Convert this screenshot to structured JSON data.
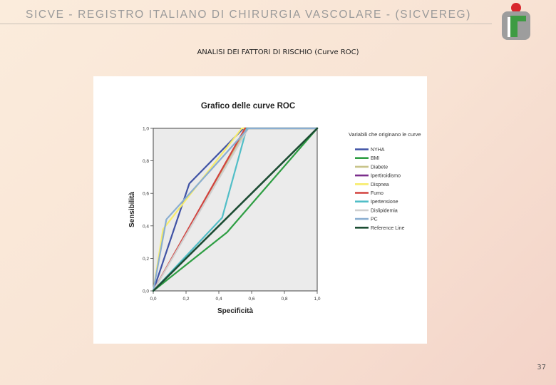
{
  "header": {
    "banner_text": "SICVE - REGISTRO ITALIANO DI CHIRURGIA VASCOLARE -  (SICVEREG)",
    "logo_letter": "r"
  },
  "slide": {
    "title": "ANALISI DEI FATTORI DI RISCHIO (Curve ROC)",
    "page_number": "37"
  },
  "colors": {
    "plot_background": "#ebebeb",
    "logo_red": "#d8272d",
    "logo_green": "#3e9b43",
    "logo_gray": "#9d9d9d"
  },
  "chart_data": {
    "type": "line",
    "title": "Grafico delle curve ROC",
    "xlabel": "Specificità",
    "ylabel": "Sensibilità",
    "xlim": [
      0,
      1
    ],
    "ylim": [
      0,
      1
    ],
    "x_ticks": [
      "0,0",
      "0,2",
      "0,4",
      "0,6",
      "0,8",
      "1,0"
    ],
    "y_ticks": [
      "0,0",
      "0,2",
      "0,4",
      "0,6",
      "0,8",
      "1,0"
    ],
    "grid": false,
    "legend_position": "right",
    "legend_title": "Variabili che originano le curve",
    "series": [
      {
        "name": "NYHA",
        "color": "#3f52a5",
        "x": [
          0,
          0.2,
          0.22,
          0.55,
          1
        ],
        "y": [
          0,
          0.6,
          0.66,
          1,
          1
        ]
      },
      {
        "name": "BMI",
        "color": "#2e9e43",
        "x": [
          0,
          0.45,
          1
        ],
        "y": [
          0,
          0.36,
          1
        ]
      },
      {
        "name": "Diabete",
        "color": "#c8c48a",
        "x": [
          0,
          0.57,
          1
        ],
        "y": [
          0,
          1,
          1
        ]
      },
      {
        "name": "Ipertiroidismo",
        "color": "#7b2f8c",
        "x": [
          0,
          1
        ],
        "y": [
          0,
          1
        ]
      },
      {
        "name": "Dispnea",
        "color": "#f7ec6c",
        "x": [
          0,
          0.06,
          0.54,
          1
        ],
        "y": [
          0,
          0.38,
          1,
          1
        ]
      },
      {
        "name": "Fumo",
        "color": "#d2423e",
        "x": [
          0,
          0.56,
          1
        ],
        "y": [
          0,
          1,
          1
        ]
      },
      {
        "name": "Ipertensione",
        "color": "#51bec7",
        "x": [
          0,
          0.42,
          0.57,
          1
        ],
        "y": [
          0,
          0.45,
          1,
          1
        ]
      },
      {
        "name": "Dislipidemia",
        "color": "#cfcfcf",
        "x": [
          0,
          0.58,
          1
        ],
        "y": [
          0,
          1,
          1
        ]
      },
      {
        "name": "PC",
        "color": "#8aaed1",
        "x": [
          0,
          0.08,
          0.58,
          1
        ],
        "y": [
          0,
          0.44,
          1,
          1
        ]
      },
      {
        "name": "Reference Line",
        "color": "#1c4d33",
        "x": [
          0,
          1
        ],
        "y": [
          0,
          1
        ]
      }
    ]
  }
}
